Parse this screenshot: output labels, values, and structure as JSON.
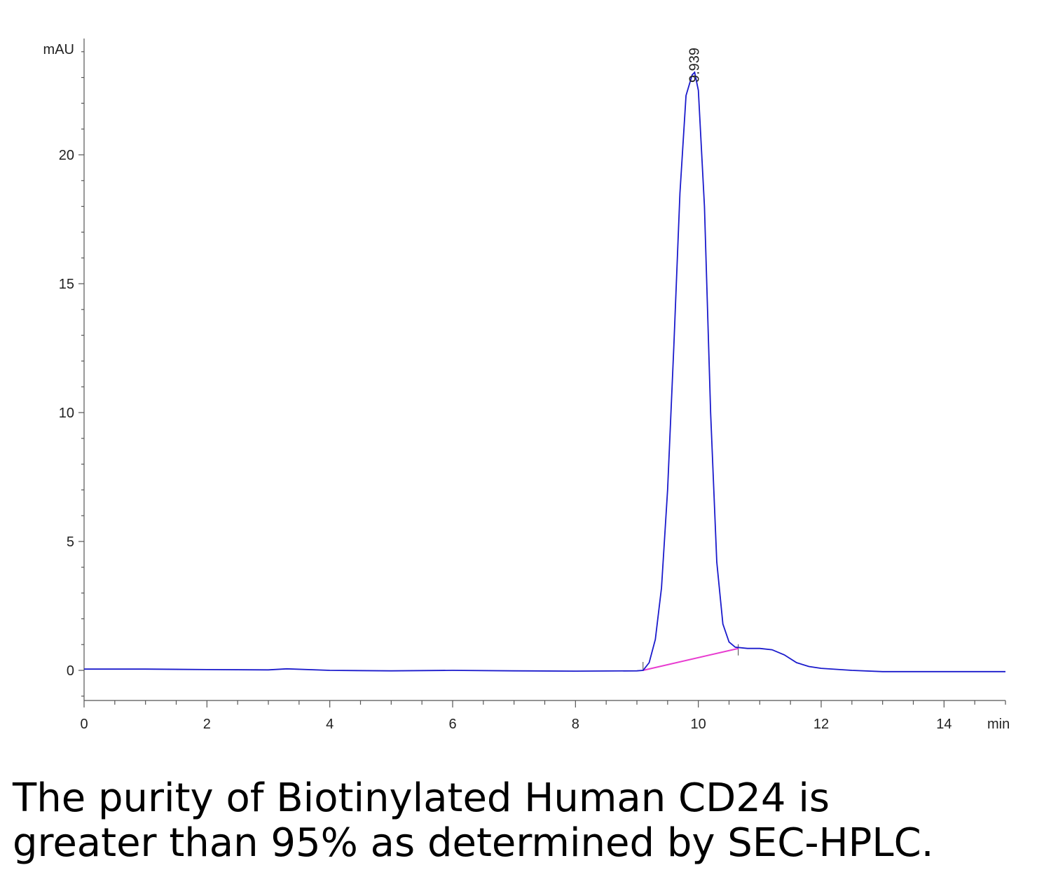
{
  "chart_data": {
    "type": "line",
    "title": "",
    "xlabel": "min",
    "ylabel": "mAU",
    "xlim": [
      0,
      15
    ],
    "ylim": [
      -1.2,
      24.5
    ],
    "x_ticks": [
      0,
      2,
      4,
      6,
      8,
      10,
      12,
      14
    ],
    "y_ticks": [
      0,
      5,
      10,
      15,
      20
    ],
    "grid": false,
    "series": [
      {
        "color": "#1a1acc",
        "x": [
          0,
          1,
          2,
          3,
          3.3,
          4,
          5,
          6,
          7,
          8,
          9,
          9.1,
          9.2,
          9.3,
          9.4,
          9.5,
          9.6,
          9.7,
          9.8,
          9.9,
          9.94,
          10.0,
          10.1,
          10.2,
          10.3,
          10.4,
          10.5,
          10.6,
          10.8,
          11.0,
          11.2,
          11.4,
          11.6,
          11.8,
          12.0,
          12.5,
          13,
          14,
          15
        ],
        "y": [
          0.05,
          0.05,
          0.03,
          0.02,
          0.06,
          0.0,
          -0.02,
          0.0,
          -0.02,
          -0.03,
          -0.02,
          0.0,
          0.3,
          1.2,
          3.2,
          7.0,
          12.5,
          18.5,
          22.3,
          23.1,
          23.2,
          22.5,
          18.0,
          10.0,
          4.2,
          1.8,
          1.1,
          0.9,
          0.85,
          0.85,
          0.8,
          0.6,
          0.3,
          0.15,
          0.08,
          0.0,
          -0.05,
          -0.05,
          -0.05
        ]
      }
    ],
    "baseline": {
      "color": "#e83bd0",
      "x": [
        9.1,
        10.65
      ],
      "y": [
        0.0,
        0.85
      ]
    },
    "annotations": [
      {
        "text": "9.939",
        "x": 9.939,
        "y": 23.2
      }
    ]
  },
  "caption": {
    "line1": "The purity of Biotinylated Human CD24 is",
    "line2": "greater than 95% as determined by SEC-HPLC."
  }
}
